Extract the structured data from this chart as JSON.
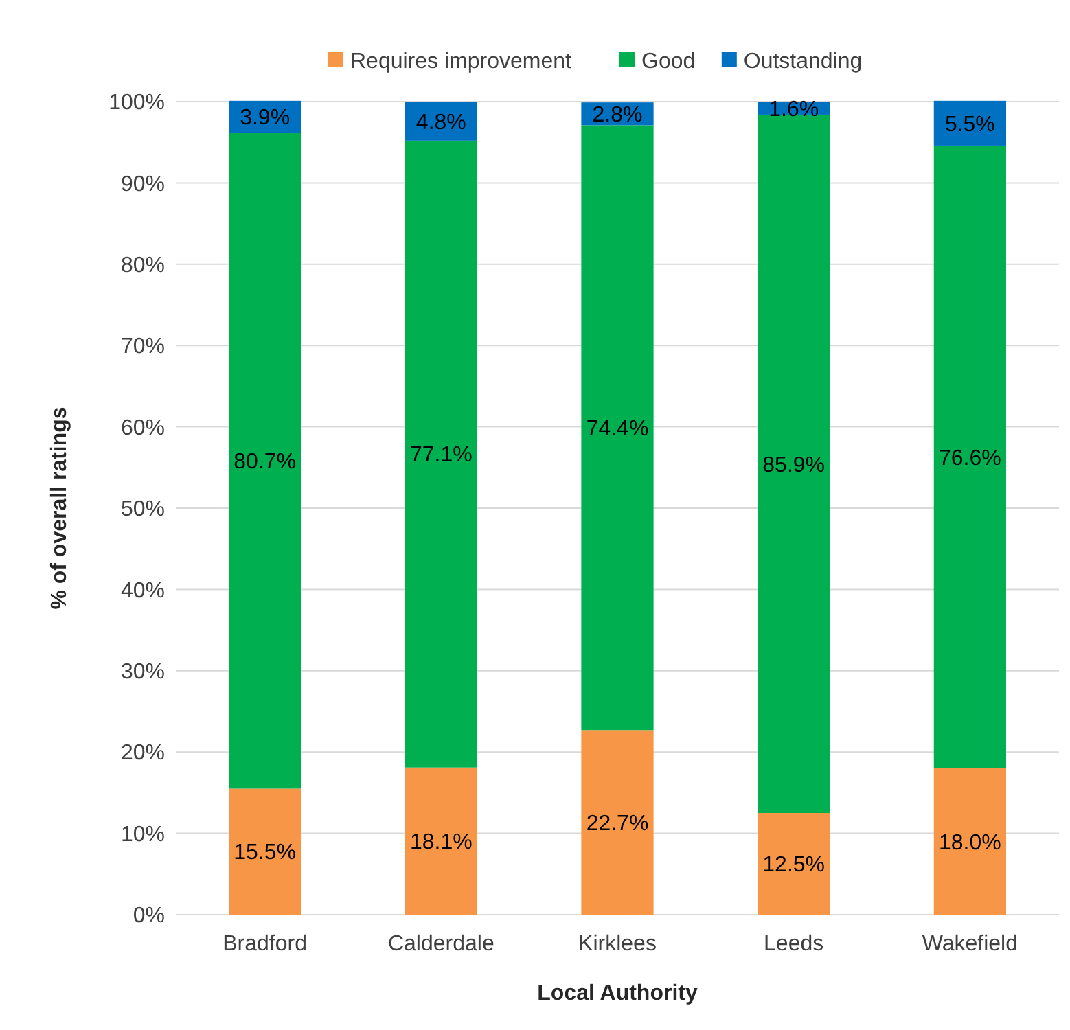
{
  "chart_data": {
    "type": "bar",
    "stacked": true,
    "xlabel": "Local Authority",
    "ylabel": "% of overall ratings",
    "categories": [
      "Bradford",
      "Calderdale",
      "Kirklees",
      "Leeds",
      "Wakefield"
    ],
    "series": [
      {
        "name": "Requires improvement",
        "color": "#f79646",
        "values": [
          15.5,
          18.1,
          22.7,
          12.5,
          18.0
        ],
        "value_labels": [
          "15.5%",
          "18.1%",
          "22.7%",
          "12.5%",
          "18.0%"
        ]
      },
      {
        "name": "Good",
        "color": "#00b050",
        "values": [
          80.7,
          77.1,
          74.4,
          85.9,
          76.6
        ],
        "value_labels": [
          "80.7%",
          "77.1%",
          "74.4%",
          "85.9%",
          "76.6%"
        ]
      },
      {
        "name": "Outstanding",
        "color": "#0070c0",
        "values": [
          3.9,
          4.8,
          2.8,
          1.6,
          5.5
        ],
        "value_labels": [
          "3.9%",
          "4.8%",
          "2.8%",
          "1.6%",
          "5.5%"
        ]
      }
    ],
    "ylim": [
      0,
      100
    ],
    "yticks": [
      {
        "value": 0,
        "label": "0%"
      },
      {
        "value": 10,
        "label": "10%"
      },
      {
        "value": 20,
        "label": "20%"
      },
      {
        "value": 30,
        "label": "30%"
      },
      {
        "value": 40,
        "label": "40%"
      },
      {
        "value": 50,
        "label": "50%"
      },
      {
        "value": 60,
        "label": "60%"
      },
      {
        "value": 70,
        "label": "70%"
      },
      {
        "value": 80,
        "label": "80%"
      },
      {
        "value": 90,
        "label": "90%"
      },
      {
        "value": 100,
        "label": "100%"
      }
    ],
    "grid": "y",
    "legend": "top"
  }
}
